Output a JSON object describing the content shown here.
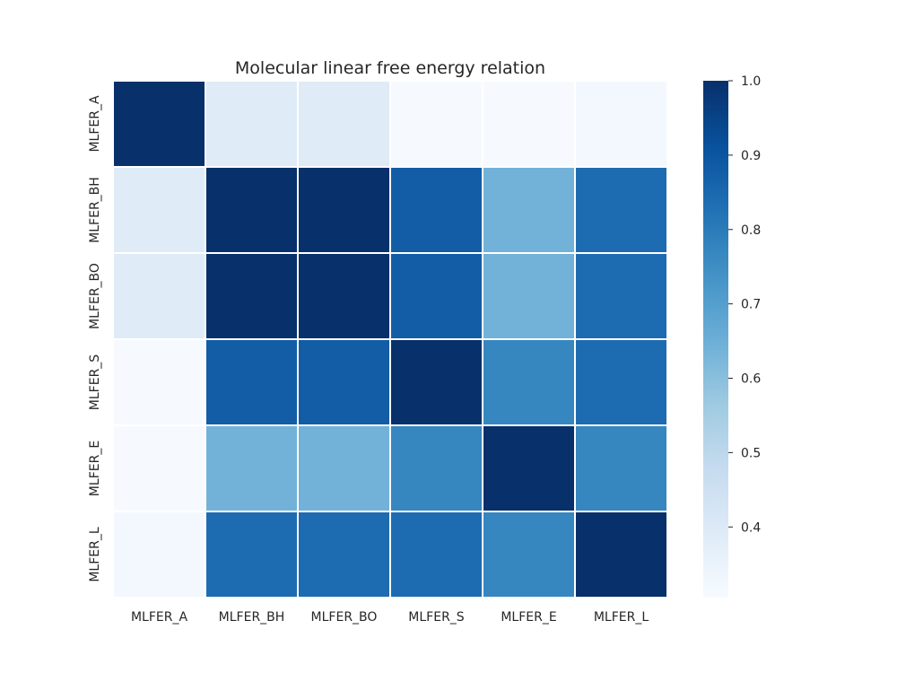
{
  "chart_data": {
    "type": "heatmap",
    "title": "Molecular linear free energy relation",
    "x_categories": [
      "MLFER_A",
      "MLFER_BH",
      "MLFER_BO",
      "MLFER_S",
      "MLFER_E",
      "MLFER_L"
    ],
    "y_categories": [
      "MLFER_A",
      "MLFER_BH",
      "MLFER_BO",
      "MLFER_S",
      "MLFER_E",
      "MLFER_L"
    ],
    "values": [
      [
        1.0,
        0.39,
        0.39,
        0.31,
        0.31,
        0.32
      ],
      [
        0.39,
        1.0,
        1.0,
        0.88,
        0.64,
        0.84
      ],
      [
        0.39,
        1.0,
        1.0,
        0.88,
        0.64,
        0.84
      ],
      [
        0.31,
        0.88,
        0.88,
        1.0,
        0.77,
        0.84
      ],
      [
        0.31,
        0.64,
        0.64,
        0.77,
        1.0,
        0.77
      ],
      [
        0.32,
        0.84,
        0.84,
        0.84,
        0.77,
        1.0
      ]
    ],
    "colorbar": {
      "min": 0.305,
      "max": 1.0,
      "ticks": [
        "0.4",
        "0.5",
        "0.6",
        "0.7",
        "0.8",
        "0.9",
        "1.0"
      ]
    },
    "colormap": "Blues",
    "grid": false,
    "cell_border_color": "#ffffff"
  }
}
